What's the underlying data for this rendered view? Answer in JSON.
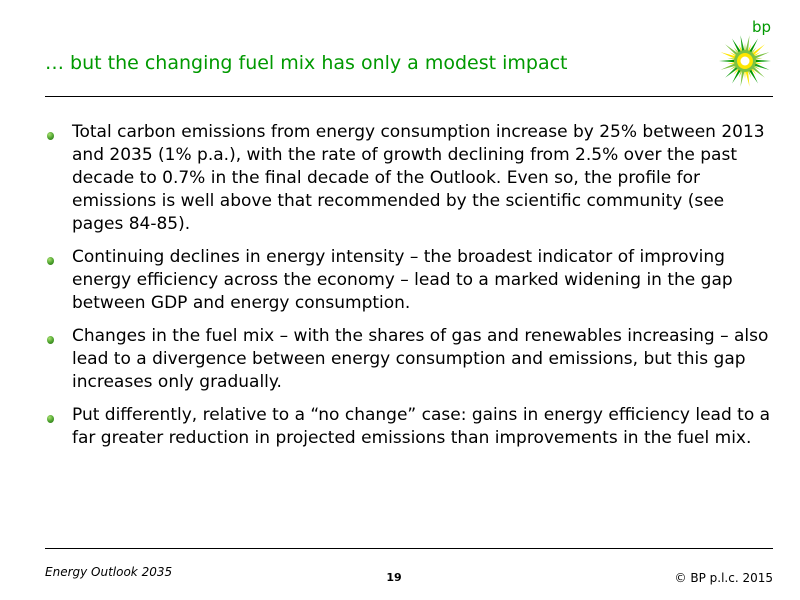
{
  "slide": {
    "title": "… but the changing fuel mix has only a modest impact",
    "logo_text": "bp",
    "bullets": [
      "Total carbon emissions from energy consumption increase by 25% between 2013 and 2035 (1% p.a.), with the rate of growth declining from 2.5% over the past decade to 0.7% in the final decade of the Outlook. Even so, the profile for emissions is well above that recommended by the scientific community (see pages 84-85).",
      "Continuing declines in energy intensity – the broadest indicator of improving energy efficiency across the economy – lead to a marked widening in the gap between GDP and energy consumption.",
      "Changes in the fuel mix – with the shares of gas and renewables increasing – also lead to a divergence between energy consumption and emissions, but this gap increases only gradually.",
      "Put differently, relative to a “no change” case:  gains in energy efficiency lead to a far greater reduction in projected emissions than improvements in the fuel mix."
    ]
  },
  "footer": {
    "publication": "Energy Outlook 2035",
    "page_number": "19",
    "copyright": "© BP p.l.c. 2015"
  },
  "colors": {
    "title_green": "#009900",
    "logo_green": "#009900",
    "logo_yellow": "#ffe600"
  },
  "icons": {
    "logo": "bp-helios-logo",
    "bullet": "green-bullet-icon"
  }
}
